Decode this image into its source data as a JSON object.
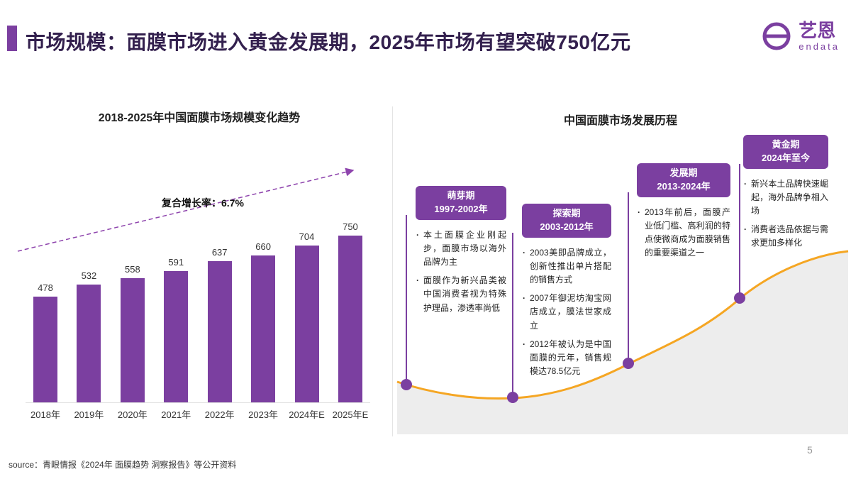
{
  "header": {
    "title": "市场规模：面膜市场进入黄金发展期，2025年市场有望突破750亿元",
    "logo_brand": "艺恩",
    "logo_sub": "endata"
  },
  "icons": {
    "logo": "endata-e-icon",
    "trend": "dashed-up-arrow-icon"
  },
  "colors": {
    "purple": "#7B3FA0",
    "orange": "#F5A623",
    "area_gray": "#EDEDED",
    "title_dark": "#33204E"
  },
  "footer": {
    "source": "source：青眼情报《2024年 面膜趋势 洞察报告》等公开资料",
    "page_number": "5"
  },
  "chart_data": [
    {
      "type": "bar",
      "title": "2018-2025年中国面膜市场规模变化趋势",
      "categories": [
        "2018年",
        "2019年",
        "2020年",
        "2021年",
        "2022年",
        "2023年",
        "2024年E",
        "2025年E"
      ],
      "values": [
        478,
        532,
        558,
        591,
        637,
        660,
        704,
        750
      ],
      "annotation": "复合增长率：6.7%",
      "ylim": [
        0,
        800
      ],
      "bar_color": "#7B3FA0",
      "grid": false,
      "legend_position": "none"
    },
    {
      "type": "area",
      "title": "中国面膜市场发展历程",
      "curve_color": "#F5A623",
      "area_color": "#EDEDED",
      "stages": [
        {
          "label": "萌芽期",
          "years": "1997-2002年",
          "bullets": [
            "本土面膜企业刚起步，面膜市场以海外品牌为主",
            "面膜作为新兴品类被中国消费者视为特殊护理品，渗透率尚低"
          ]
        },
        {
          "label": "探索期",
          "years": "2003-2012年",
          "bullets": [
            "2003美即品牌成立，创新性推出单片搭配的销售方式",
            "2007年御泥坊淘宝网店成立，膜法世家成立",
            "2012年被认为是中国面膜的元年，销售规模达78.5亿元"
          ]
        },
        {
          "label": "发展期",
          "years": "2013-2024年",
          "bullets": [
            "2013年前后，面膜产业低门槛、高利润的特点使微商成为面膜销售的重要渠道之一"
          ]
        },
        {
          "label": "黄金期",
          "years": "2024年至今",
          "bullets": [
            "新兴本土品牌快速崛起，海外品牌争相入场",
            "消费者选品依据与需求更加多样化"
          ]
        }
      ]
    }
  ]
}
